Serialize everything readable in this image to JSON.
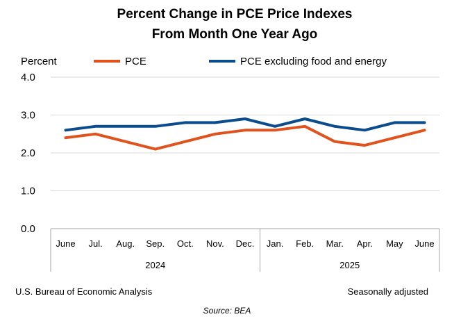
{
  "chart_data": {
    "type": "line",
    "title_line1": "Percent Change in PCE Price Indexes",
    "title_line2": "From Month One Year Ago",
    "ylabel": "Percent",
    "ylim": [
      0,
      4
    ],
    "yticks": [
      "0.0",
      "1.0",
      "2.0",
      "3.0",
      "4.0"
    ],
    "ytick_values": [
      0,
      1,
      2,
      3,
      4
    ],
    "grid": true,
    "legend_position": "top",
    "categories": [
      "June",
      "Jul.",
      "Aug.",
      "Sep.",
      "Oct.",
      "Nov.",
      "Dec.",
      "Jan.",
      "Feb.",
      "Mar.",
      "Apr.",
      "May",
      "June"
    ],
    "year_groups": [
      {
        "label": "2024",
        "count": 7
      },
      {
        "label": "2025",
        "count": 6
      }
    ],
    "series": [
      {
        "name": "PCE",
        "color": "#E0531F",
        "values": [
          2.4,
          2.5,
          2.3,
          2.1,
          2.3,
          2.5,
          2.6,
          2.6,
          2.7,
          2.3,
          2.2,
          2.4,
          2.6
        ]
      },
      {
        "name": "PCE excluding food and energy",
        "color": "#0B4C8C",
        "values": [
          2.6,
          2.7,
          2.7,
          2.7,
          2.8,
          2.8,
          2.9,
          2.7,
          2.9,
          2.7,
          2.6,
          2.8,
          2.8
        ]
      }
    ]
  },
  "footer": {
    "left": "U.S. Bureau of Economic Analysis",
    "right": "Seasonally adjusted",
    "source": "Source: BEA"
  }
}
